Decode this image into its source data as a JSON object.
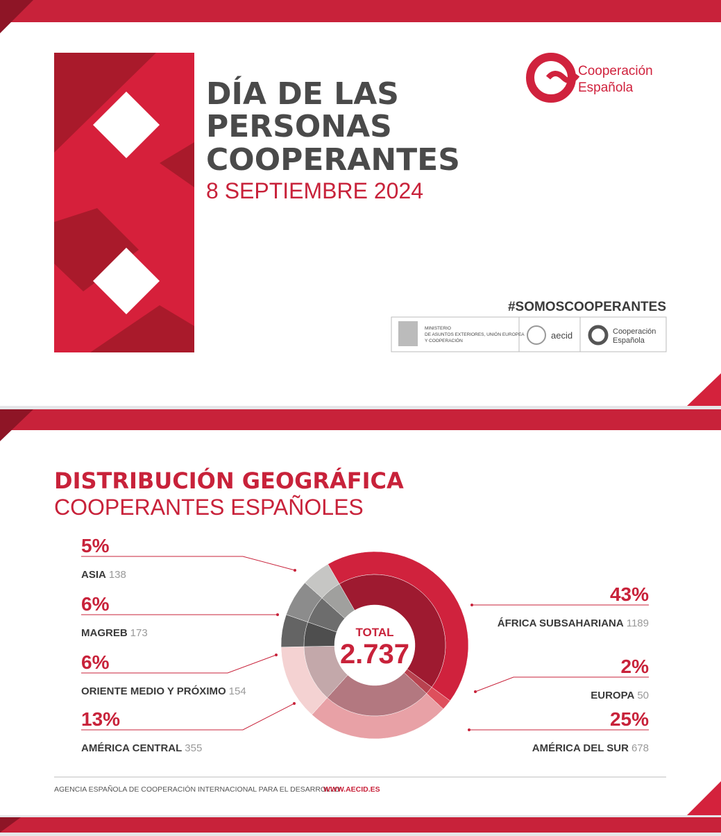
{
  "slide1": {
    "title_lines": [
      "DÍA DE LAS",
      "PERSONAS",
      "COOPERANTES"
    ],
    "date": "8 SEPTIEMBRE 2024",
    "logo": [
      "Cooperación",
      "Española"
    ],
    "hashtag": "#SOMOSCOOPERANTES",
    "ministry": [
      "MINISTERIO",
      "DE ASUNTOS EXTERIORES, UNIÓN EUROPEA",
      "Y COOPERACIÓN"
    ],
    "aecid": "aecid",
    "small_logo": [
      "Cooperación",
      "Española"
    ]
  },
  "chart_data": {
    "type": "pie",
    "title": "DISTRIBUCIÓN GEOGRÁFICA",
    "subtitle": "COOPERANTES ESPAÑOLES",
    "categories": [
      "ÁFRICA SUBSAHARIANA",
      "EUROPA",
      "AMÉRICA DEL SUR",
      "AMÉRICA CENTRAL",
      "ORIENTE MEDIO Y PRÓXIMO",
      "MAGREB",
      "ASIA"
    ],
    "values": [
      1189,
      50,
      678,
      355,
      154,
      173,
      138
    ],
    "percentages": [
      43,
      2,
      25,
      13,
      6,
      6,
      5
    ],
    "percentage_labels": [
      "43%",
      "2%",
      "25%",
      "13%",
      "6%",
      "6%",
      "5%"
    ],
    "colors": [
      "#d0223d",
      "#de4f5c",
      "#e8a1a6",
      "#f4d2d2",
      "#646464",
      "#8c8c8c",
      "#c6c6c4"
    ],
    "inner_colors": [
      "#9e1a30",
      "#b8424f",
      "#b37880",
      "#c3a8aa",
      "#4e4e4e",
      "#6d6d6d",
      "#a0a09e"
    ],
    "total_label": "TOTAL",
    "total": {
      "value": 2737,
      "label": "2.737"
    }
  },
  "footer": {
    "agency": "AGENCIA ESPAÑOLA DE COOPERACIÓN INTERNACIONAL PARA EL DESARROLLO",
    "url": "WWW.AECID.ES"
  }
}
